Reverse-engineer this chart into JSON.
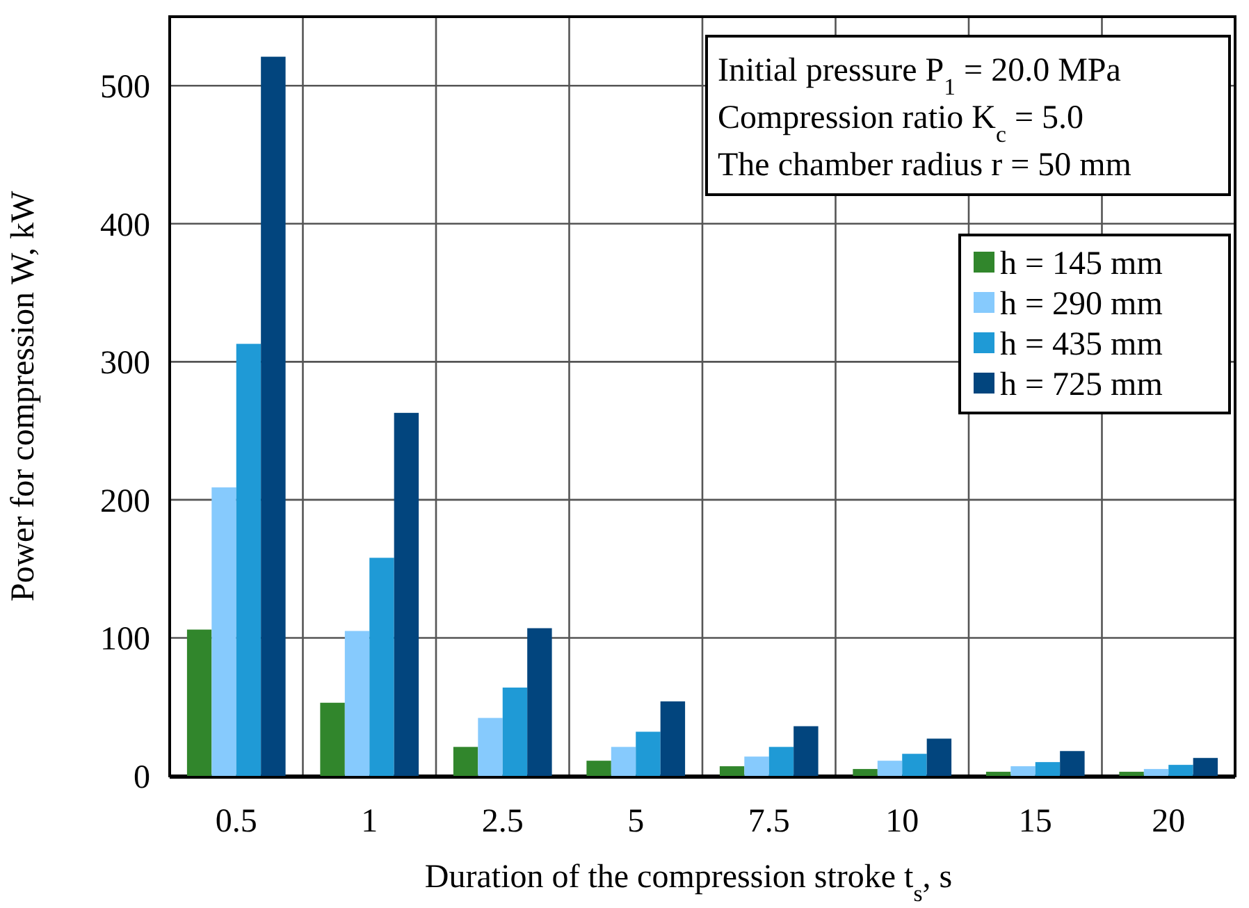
{
  "chart_data": {
    "type": "bar",
    "xlabel": "Duration of the compression stroke t$_{s}$, s",
    "ylabel": "Power for compression W, kW",
    "categories": [
      "0.5",
      "1",
      "2.5",
      "5",
      "7.5",
      "10",
      "15",
      "20"
    ],
    "series": [
      {
        "name": "h = 145 mm",
        "color": "#31862c",
        "values": [
          106,
          53,
          21,
          11,
          7,
          5,
          3,
          3
        ]
      },
      {
        "name": "h = 290 mm",
        "color": "#86cafd",
        "values": [
          209,
          105,
          42,
          21,
          14,
          11,
          7,
          5
        ]
      },
      {
        "name": "h = 435 mm",
        "color": "#1f9ad6",
        "values": [
          313,
          158,
          64,
          32,
          21,
          16,
          10,
          8
        ]
      },
      {
        "name": "h = 725 mm",
        "color": "#02457e",
        "values": [
          521,
          263,
          107,
          54,
          36,
          27,
          18,
          13
        ]
      }
    ],
    "ylim": [
      0,
      550
    ],
    "yticks": [
      0,
      100,
      200,
      300,
      400,
      500
    ],
    "grid": true,
    "legend": "top right",
    "annotations": [
      "Initial pressure P$_{1}$ = 20.0 MPa",
      "Compression ratio K$_{c}$ = 5.0",
      "The chamber radius r = 50 mm"
    ]
  }
}
